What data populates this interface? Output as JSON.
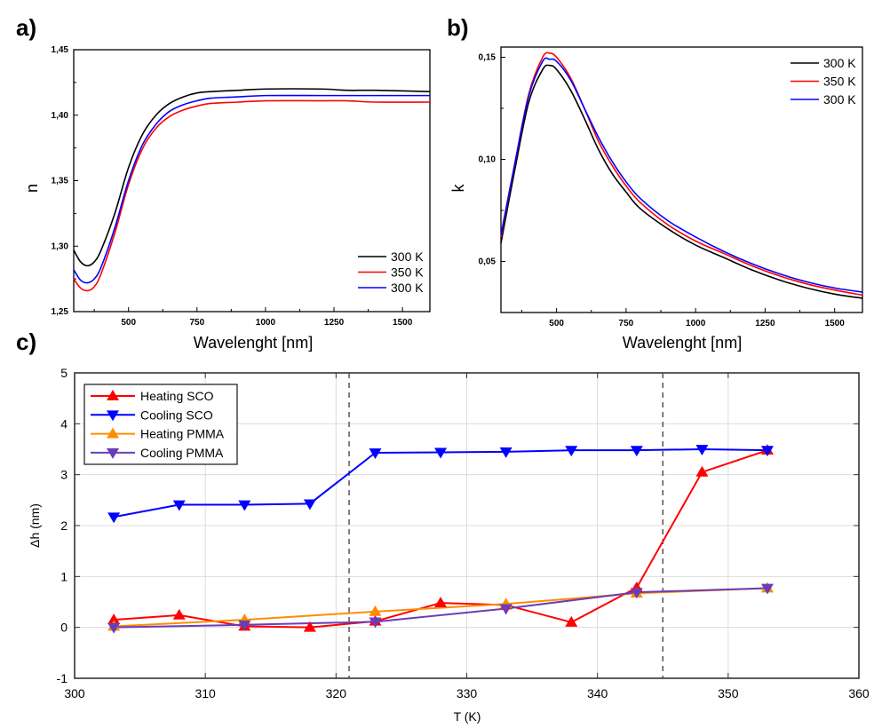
{
  "chart_data": [
    {
      "panel": "a)",
      "type": "line",
      "xlabel": "Wavelenght [nm]",
      "ylabel": "n",
      "xlim": [
        300,
        1600
      ],
      "ylim": [
        1.25,
        1.45
      ],
      "xticks": [
        "500",
        "750",
        "1000",
        "1250",
        "1500"
      ],
      "xtick_values": [
        500,
        750,
        1000,
        1250,
        1500
      ],
      "yticks": [
        "1,25",
        "1,30",
        "1,35",
        "1,40",
        "1,45"
      ],
      "ytick_values": [
        1.25,
        1.3,
        1.35,
        1.4,
        1.45
      ],
      "legend_position": "bottom-right",
      "grid": false,
      "x": [
        300,
        325,
        350,
        375,
        400,
        450,
        500,
        550,
        600,
        650,
        700,
        750,
        800,
        900,
        1000,
        1200,
        1300,
        1400,
        1600
      ],
      "series": [
        {
          "name": "300 K",
          "color": "#000000",
          "values": [
            1.297,
            1.288,
            1.285,
            1.288,
            1.297,
            1.325,
            1.36,
            1.385,
            1.4,
            1.409,
            1.414,
            1.417,
            1.418,
            1.419,
            1.42,
            1.42,
            1.419,
            1.419,
            1.418
          ]
        },
        {
          "name": "350 K",
          "color": "#ff0000",
          "values": [
            1.275,
            1.268,
            1.266,
            1.269,
            1.279,
            1.31,
            1.347,
            1.374,
            1.39,
            1.399,
            1.404,
            1.407,
            1.409,
            1.41,
            1.411,
            1.411,
            1.411,
            1.41,
            1.41
          ]
        },
        {
          "name": "300 K",
          "color": "#0000ff",
          "values": [
            1.282,
            1.274,
            1.272,
            1.275,
            1.284,
            1.314,
            1.35,
            1.377,
            1.393,
            1.403,
            1.408,
            1.411,
            1.413,
            1.414,
            1.415,
            1.415,
            1.415,
            1.415,
            1.415
          ]
        }
      ]
    },
    {
      "panel": "b)",
      "type": "line",
      "xlabel": "Wavelenght [nm]",
      "ylabel": "k",
      "xlim": [
        300,
        1600
      ],
      "ylim": [
        0.025,
        0.155
      ],
      "xticks": [
        "500",
        "750",
        "1000",
        "1250",
        "1500"
      ],
      "xtick_values": [
        500,
        750,
        1000,
        1250,
        1500
      ],
      "yticks": [
        "0,05",
        "0,10",
        "0,15"
      ],
      "ytick_values": [
        0.05,
        0.1,
        0.15
      ],
      "legend_position": "top-right",
      "grid": false,
      "x": [
        300,
        350,
        400,
        450,
        475,
        500,
        550,
        600,
        650,
        700,
        750,
        800,
        900,
        1000,
        1100,
        1200,
        1300,
        1400,
        1500,
        1600
      ],
      "series": [
        {
          "name": "300 K",
          "color": "#000000",
          "values": [
            0.059,
            0.095,
            0.128,
            0.144,
            0.146,
            0.144,
            0.134,
            0.12,
            0.105,
            0.093,
            0.084,
            0.076,
            0.066,
            0.058,
            0.052,
            0.046,
            0.041,
            0.037,
            0.034,
            0.032
          ]
        },
        {
          "name": "350 K",
          "color": "#ff0000",
          "values": [
            0.062,
            0.098,
            0.132,
            0.15,
            0.152,
            0.15,
            0.14,
            0.125,
            0.109,
            0.097,
            0.087,
            0.079,
            0.068,
            0.06,
            0.054,
            0.048,
            0.043,
            0.039,
            0.036,
            0.0335
          ]
        },
        {
          "name": "300 K",
          "color": "#0000ff",
          "values": [
            0.063,
            0.098,
            0.131,
            0.148,
            0.149,
            0.148,
            0.139,
            0.125,
            0.111,
            0.099,
            0.089,
            0.081,
            0.07,
            0.062,
            0.055,
            0.049,
            0.044,
            0.04,
            0.037,
            0.035
          ]
        }
      ]
    },
    {
      "panel": "c)",
      "type": "line",
      "xlabel": "T (K)",
      "ylabel": "Δh (nm)",
      "xlim": [
        300,
        360
      ],
      "ylim": [
        -1,
        5
      ],
      "xticks": [
        "300",
        "310",
        "320",
        "330",
        "340",
        "350",
        "360"
      ],
      "xtick_values": [
        300,
        310,
        320,
        330,
        340,
        350,
        360
      ],
      "yticks": [
        "-1",
        "0",
        "1",
        "2",
        "3",
        "4",
        "5"
      ],
      "ytick_values": [
        -1,
        0,
        1,
        2,
        3,
        4,
        5
      ],
      "grid": true,
      "legend_position": "top-left",
      "vertical_dashed_lines": [
        321,
        345
      ],
      "series": [
        {
          "name": "Heating SCO",
          "color": "#ff0000",
          "marker": "triangle-up",
          "x": [
            303,
            308,
            313,
            318,
            323,
            328,
            333,
            338,
            343,
            348,
            353
          ],
          "values": [
            0.15,
            0.24,
            0.02,
            0.0,
            0.12,
            0.48,
            0.44,
            0.1,
            0.78,
            3.05,
            3.48
          ]
        },
        {
          "name": "Cooling SCO",
          "color": "#0000ff",
          "marker": "triangle-down",
          "x": [
            303,
            308,
            313,
            318,
            323,
            328,
            333,
            338,
            343,
            348,
            353
          ],
          "values": [
            2.17,
            2.41,
            2.41,
            2.43,
            3.43,
            3.44,
            3.45,
            3.48,
            3.48,
            3.5,
            3.48
          ]
        },
        {
          "name": "Heating PMMA",
          "color": "#ff8c00",
          "marker": "triangle-up",
          "x": [
            303,
            313,
            323,
            333,
            343,
            353
          ],
          "values": [
            0.02,
            0.15,
            0.31,
            0.46,
            0.67,
            0.77
          ]
        },
        {
          "name": "Cooling PMMA",
          "color": "#6a3db8",
          "marker": "triangle-down",
          "x": [
            303,
            313,
            323,
            333,
            343,
            353
          ],
          "values": [
            0.0,
            0.05,
            0.11,
            0.37,
            0.69,
            0.77
          ]
        }
      ]
    }
  ]
}
